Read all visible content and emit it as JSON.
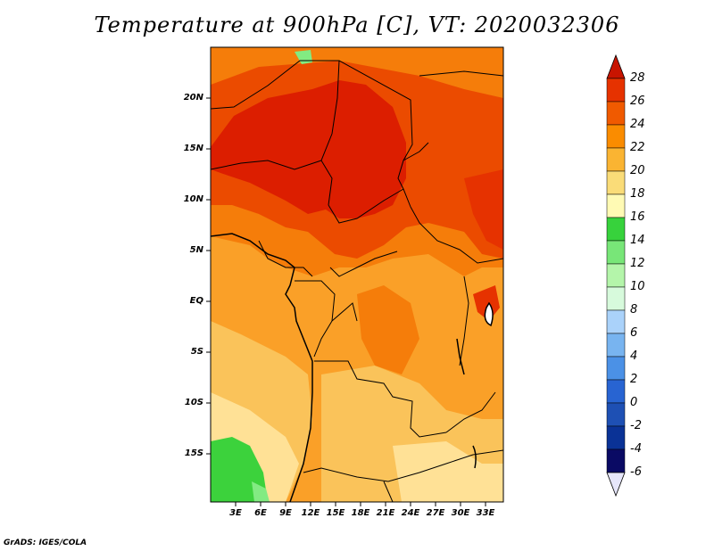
{
  "title": "Temperature at 900hPa [C], VT: 2020032306",
  "credit": "GrADS: IGES/COLA",
  "axes": {
    "y_ticks": [
      "20N",
      "15N",
      "10N",
      "5N",
      "EQ",
      "5S",
      "10S",
      "15S"
    ],
    "x_ticks": [
      "3E",
      "6E",
      "9E",
      "12E",
      "15E",
      "18E",
      "21E",
      "24E",
      "27E",
      "30E",
      "33E"
    ]
  },
  "colorbar": {
    "labels": [
      "28",
      "26",
      "24",
      "22",
      "20",
      "18",
      "16",
      "14",
      "12",
      "10",
      "8",
      "6",
      "4",
      "2",
      "0",
      "-2",
      "-4",
      "-6"
    ],
    "colors": [
      "#c81400",
      "#e63200",
      "#f05a00",
      "#fa8c00",
      "#fab432",
      "#fadc78",
      "#fffab4",
      "#37d23c",
      "#78e678",
      "#b4f5aa",
      "#d7fadc",
      "#aad2fa",
      "#78b4f0",
      "#4b91e6",
      "#2864d2",
      "#1e50b4",
      "#0a3296",
      "#0a0a64"
    ]
  },
  "palette": {
    "hot": "#dc1e00",
    "very_warm": "#eb4b00",
    "warm": "#f57d0a",
    "mild": "#faa028",
    "cool": "#fac35a",
    "cooler": "#ffe196",
    "green": "#3cd23c",
    "light_green": "#82eb82"
  }
}
